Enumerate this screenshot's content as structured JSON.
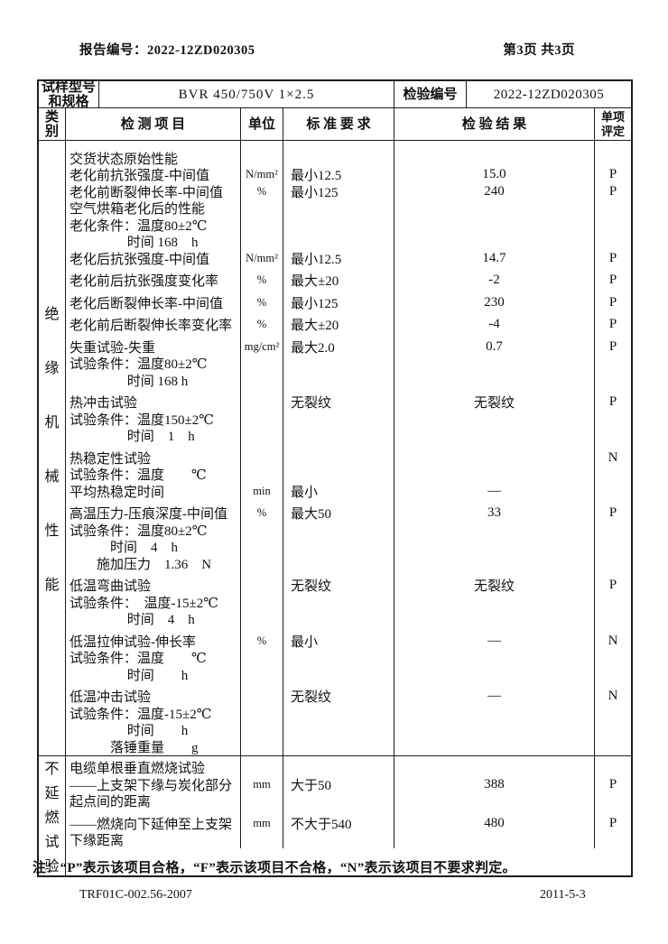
{
  "page": {
    "report_no": "报告编号：2022-12ZD020305",
    "page_info": "第3页 共3页",
    "note": "注：“P”表示该项目合格，“F”表示该项目不合格，“N”表示该项目不要求判定。",
    "footer_left": "TRF01C-002.56-2007",
    "footer_right": "2011-5-3"
  },
  "info_row": {
    "sample_label_lines": [
      "试样型号",
      "和规格"
    ],
    "sample_value": "BVR 450/750V 1×2.5",
    "inspection_no_label": "检验编号",
    "inspection_no_value": "2022-12ZD020305"
  },
  "columns": {
    "category_lines": [
      "类",
      "别"
    ],
    "item": "检 测 项 目",
    "unit": "单位",
    "standard": "标 准 要 求",
    "result": "检 验 结 果",
    "verdict_lines": [
      "单项",
      "评定"
    ]
  },
  "sections": [
    {
      "category": [
        "绝",
        "缘",
        "机",
        "械",
        "性",
        "能"
      ],
      "rows": [
        {
          "gap": 10
        },
        {
          "item": "交货状态原始性能"
        },
        {
          "item": "老化前抗张强度-中间值",
          "unit": "N/mm²",
          "standard": "最小12.5",
          "result": "15.0",
          "verdict": "P"
        },
        {
          "item": "老化前断裂伸长率-中间值",
          "unit": "%",
          "standard": "最小125",
          "result": "240",
          "verdict": "P"
        },
        {
          "item": "空气烘箱老化后的性能"
        },
        {
          "item": "老化条件：温度80±2℃"
        },
        {
          "item": "　　　　 时间 168　h"
        },
        {
          "item": "老化后抗张强度-中间值",
          "unit": "N/mm²",
          "standard": "最小12.5",
          "result": "14.7",
          "verdict": "P"
        },
        {
          "gap": 6
        },
        {
          "item": "老化前后抗张强度变化率",
          "unit": "%",
          "standard": "最大±20",
          "result": "-2",
          "verdict": "P"
        },
        {
          "gap": 6
        },
        {
          "item": "老化后断裂伸长率-中间值",
          "unit": "%",
          "standard": "最小125",
          "result": "230",
          "verdict": "P"
        },
        {
          "gap": 6
        },
        {
          "item": "老化前后断裂伸长率变化率",
          "unit": "%",
          "standard": "最大±20",
          "result": "-4",
          "verdict": "P"
        },
        {
          "gap": 6
        },
        {
          "item": "失重试验-失重",
          "unit": "mg/cm²",
          "standard": "最大2.0",
          "result": "0.7",
          "verdict": "P"
        },
        {
          "item": "试验条件：温度80±2℃"
        },
        {
          "item": "　　　　 时间 168 h"
        },
        {
          "gap": 6
        },
        {
          "item": "热冲击试验",
          "standard": "无裂纹",
          "result": "无裂纹",
          "verdict": "P"
        },
        {
          "item": "试验条件：温度150±2℃"
        },
        {
          "item": "　　　　 时间　1　h"
        },
        {
          "gap": 6
        },
        {
          "item": "热稳定性试验",
          "verdict": "N"
        },
        {
          "item": "试验条件：温度　　℃"
        },
        {
          "item": "平均热稳定时间",
          "unit": "min",
          "standard": "最小",
          "result": "—"
        },
        {
          "gap": 6
        },
        {
          "item": "高温压力-压痕深度-中间值",
          "unit": "%",
          "standard": "最大50",
          "result": "33",
          "verdict": "P"
        },
        {
          "item": "试验条件：温度80±2℃"
        },
        {
          "item": "　　　时间　4　h"
        },
        {
          "item": "　　施加压力　1.36　N"
        },
        {
          "gap": 6
        },
        {
          "item": "低温弯曲试验",
          "standard": "无裂纹",
          "result": "无裂纹",
          "verdict": "P"
        },
        {
          "item": "试验条件：　温度-15±2℃"
        },
        {
          "item": "　　　　 时间　4　h"
        },
        {
          "gap": 6
        },
        {
          "item": "低温拉伸试验-伸长率",
          "unit": "%",
          "standard": "最小",
          "result": "—",
          "verdict": "N"
        },
        {
          "item": "试验条件：温度　　℃"
        },
        {
          "item": "　　　　 时间　　h"
        },
        {
          "gap": 6
        },
        {
          "item": "低温冲击试验",
          "standard": "无裂纹",
          "result": "—",
          "verdict": "N"
        },
        {
          "item": "试验条件：温度-15±2℃"
        },
        {
          "item": "　　　　 时间　　h"
        },
        {
          "item": "　　　落锤重量　　g"
        }
      ]
    },
    {
      "category": [
        "不",
        "延",
        "燃",
        "试",
        "验"
      ],
      "rows": [
        {
          "gap": 4
        },
        {
          "item": "电缆单根垂直燃烧试验"
        },
        {
          "item": "——上支架下缘与炭化部分",
          "unit": "mm",
          "standard": "大于50",
          "result": "388",
          "verdict": "P"
        },
        {
          "item": "起点间的距离"
        },
        {
          "gap": 6
        },
        {
          "item": "——燃烧向下延伸至上支架",
          "unit": "mm",
          "standard": "不大于540",
          "result": "480",
          "verdict": "P"
        },
        {
          "item": "下缘距离"
        }
      ]
    }
  ],
  "colors": {
    "line": "#1c1c1c",
    "text": "#111111",
    "background": "#ffffff"
  }
}
